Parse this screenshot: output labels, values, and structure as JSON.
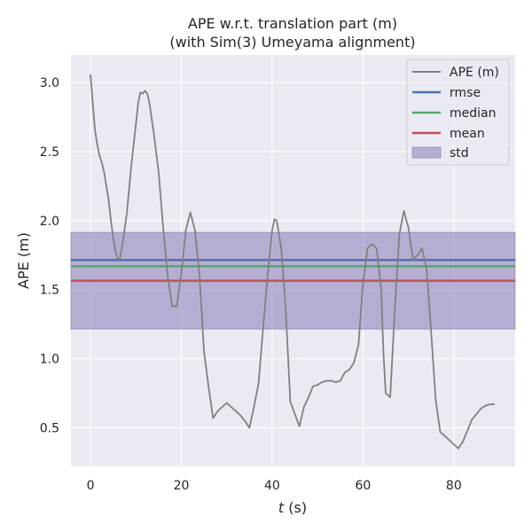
{
  "chart_data": {
    "type": "line",
    "title": "APE w.r.t. translation part (m)",
    "subtitle": "(with Sim(3) Umeyama alignment)",
    "xlabel_italic": "t",
    "xlabel_unit": " (s)",
    "ylabel": "APE (m)",
    "xlim": [
      -4.3,
      93.5
    ],
    "ylim": [
      0.22,
      3.2
    ],
    "xticks": [
      0,
      20,
      40,
      60,
      80
    ],
    "yticks": [
      0.5,
      1.0,
      1.5,
      2.0,
      2.5,
      3.0
    ],
    "xtick_labels": [
      "0",
      "20",
      "40",
      "60",
      "80"
    ],
    "ytick_labels": [
      "0.5",
      "1.0",
      "1.5",
      "2.0",
      "2.5",
      "3.0"
    ],
    "grid": true,
    "legend_position": "top-right",
    "colors": {
      "background": "#EAEAF2",
      "grid": "#FFFFFF",
      "ape": "#808080",
      "rmse": "#4C72B0",
      "median": "#55A868",
      "mean": "#C44E52",
      "std": "#8172B2"
    },
    "series": [
      {
        "name": "APE (m)",
        "x": [
          0,
          0.5,
          1,
          1.5,
          2,
          2.5,
          3,
          4,
          4.5,
          5,
          5.5,
          6,
          6.5,
          7,
          8,
          9,
          10,
          10.5,
          11,
          11.5,
          12,
          12.5,
          13,
          14,
          15,
          16,
          17,
          18,
          19,
          20,
          21,
          22,
          23,
          24,
          25,
          26,
          27,
          28,
          29,
          30,
          31,
          32,
          33,
          34,
          35,
          36,
          37,
          38,
          39,
          40,
          40.5,
          41,
          42,
          43,
          44,
          45,
          46,
          47,
          48,
          49,
          50,
          51,
          52,
          53,
          54,
          55,
          56,
          57,
          58,
          59,
          60,
          61,
          62,
          63,
          64,
          64.5,
          65,
          66,
          67,
          68,
          69,
          70,
          71,
          72,
          73,
          74,
          75,
          76,
          77,
          78,
          79,
          80,
          81,
          82,
          83,
          84,
          85,
          86,
          87,
          88,
          89
        ],
        "y": [
          3.06,
          2.85,
          2.65,
          2.55,
          2.47,
          2.42,
          2.35,
          2.15,
          2.0,
          1.88,
          1.78,
          1.72,
          1.73,
          1.82,
          2.05,
          2.4,
          2.7,
          2.85,
          2.93,
          2.92,
          2.94,
          2.92,
          2.85,
          2.62,
          2.35,
          1.95,
          1.6,
          1.38,
          1.38,
          1.62,
          1.93,
          2.06,
          1.93,
          1.6,
          1.05,
          0.8,
          0.57,
          0.62,
          0.65,
          0.68,
          0.65,
          0.62,
          0.59,
          0.55,
          0.5,
          0.65,
          0.82,
          1.22,
          1.6,
          1.93,
          2.01,
          2.0,
          1.8,
          1.35,
          0.69,
          0.6,
          0.51,
          0.65,
          0.72,
          0.8,
          0.81,
          0.83,
          0.84,
          0.84,
          0.83,
          0.84,
          0.9,
          0.92,
          0.97,
          1.1,
          1.55,
          1.8,
          1.83,
          1.8,
          1.5,
          1.05,
          0.75,
          0.72,
          1.35,
          1.9,
          2.07,
          1.95,
          1.72,
          1.75,
          1.8,
          1.65,
          1.2,
          0.7,
          0.47,
          0.44,
          0.41,
          0.38,
          0.35,
          0.4,
          0.48,
          0.56,
          0.6,
          0.64,
          0.66,
          0.67,
          0.67
        ]
      }
    ],
    "hlines": [
      {
        "name": "rmse",
        "value": 1.715
      },
      {
        "name": "median",
        "value": 1.67
      },
      {
        "name": "mean",
        "value": 1.565
      }
    ],
    "band": {
      "name": "std",
      "low": 1.215,
      "high": 1.915
    }
  }
}
